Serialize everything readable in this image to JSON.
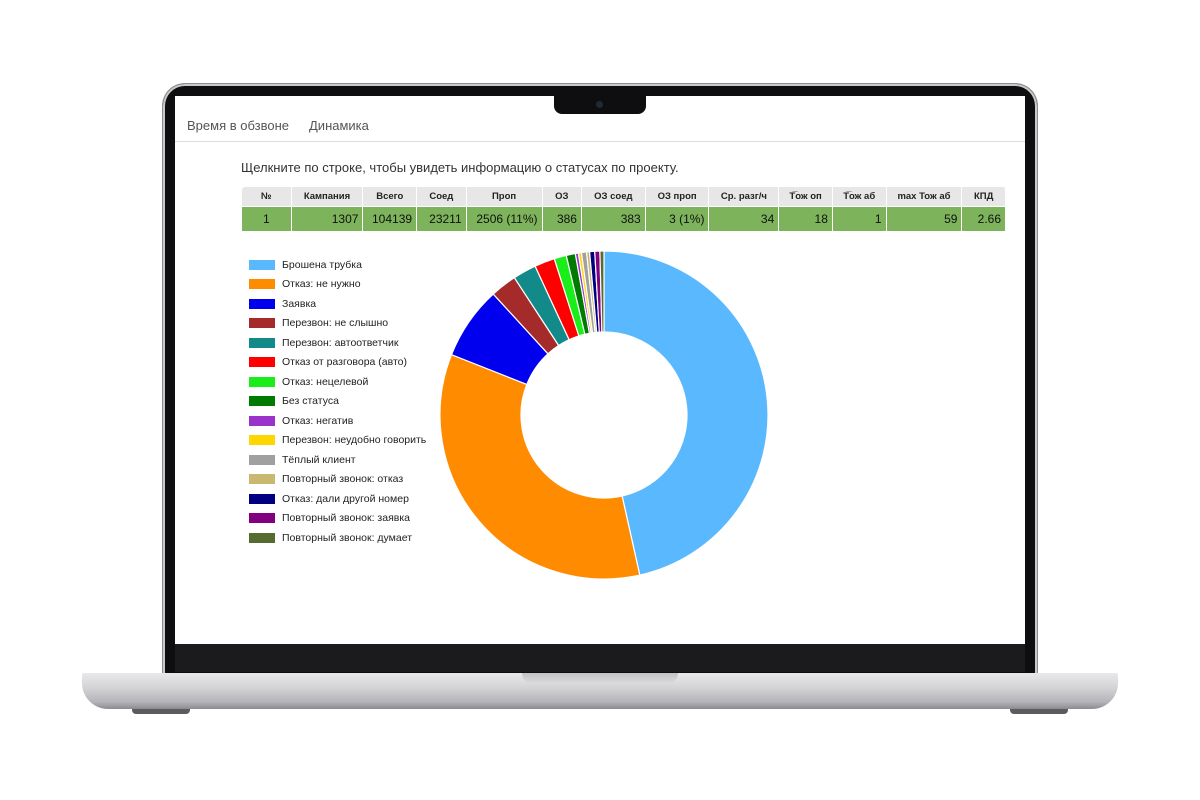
{
  "tabs": [
    {
      "label": "Время в обзвоне"
    },
    {
      "label": "Динамика"
    }
  ],
  "hint": "Щелкните по строке, чтобы увидеть информацию о статусах по проекту.",
  "table": {
    "headers": [
      "№",
      "Кампания",
      "Всего",
      "Соед",
      "Проп",
      "ОЗ",
      "ОЗ соед",
      "ОЗ проп",
      "Ср. разг/ч",
      "Т̅ож оп",
      "Т̅ож аб",
      "max Тож аб",
      "КПД"
    ],
    "rows": [
      [
        "1",
        "1307",
        "104139",
        "23211",
        "2506  (11%)",
        "386",
        "383",
        "3  (1%)",
        "34",
        "18",
        "1",
        "59",
        "2.66"
      ]
    ]
  },
  "chart_data": {
    "type": "donut",
    "legend_position": "left",
    "slices": [
      {
        "label": "Брошена трубка",
        "value": 46.5,
        "color": "#5ab8ff"
      },
      {
        "label": "Отказ: не нужно",
        "value": 34.5,
        "color": "#ff8c00"
      },
      {
        "label": "Заявка",
        "value": 7.2,
        "color": "#0000ee"
      },
      {
        "label": "Перезвон: не слышно",
        "value": 2.6,
        "color": "#a52a2a"
      },
      {
        "label": "Перезвон: автоответчик",
        "value": 2.3,
        "color": "#128a8a"
      },
      {
        "label": "Отказ от разговора (авто)",
        "value": 2.0,
        "color": "#ff0000"
      },
      {
        "label": "Отказ: нецелевой",
        "value": 1.2,
        "color": "#1aee1a"
      },
      {
        "label": "Без статуса",
        "value": 0.9,
        "color": "#007a00"
      },
      {
        "label": "Отказ: негатив",
        "value": 0.3,
        "color": "#9933cc"
      },
      {
        "label": "Перезвон: неудобно говорить",
        "value": 0.3,
        "color": "#ffd700"
      },
      {
        "label": "Тёплый клиент",
        "value": 0.5,
        "color": "#a0a0a0"
      },
      {
        "label": "Повторный звонок: отказ",
        "value": 0.3,
        "color": "#c8b870"
      },
      {
        "label": "Отказ: дали другой номер",
        "value": 0.5,
        "color": "#000080"
      },
      {
        "label": "Повторный звонок: заявка",
        "value": 0.5,
        "color": "#800080"
      },
      {
        "label": "Повторный звонок: думает",
        "value": 0.4,
        "color": "#556b2f"
      }
    ]
  }
}
